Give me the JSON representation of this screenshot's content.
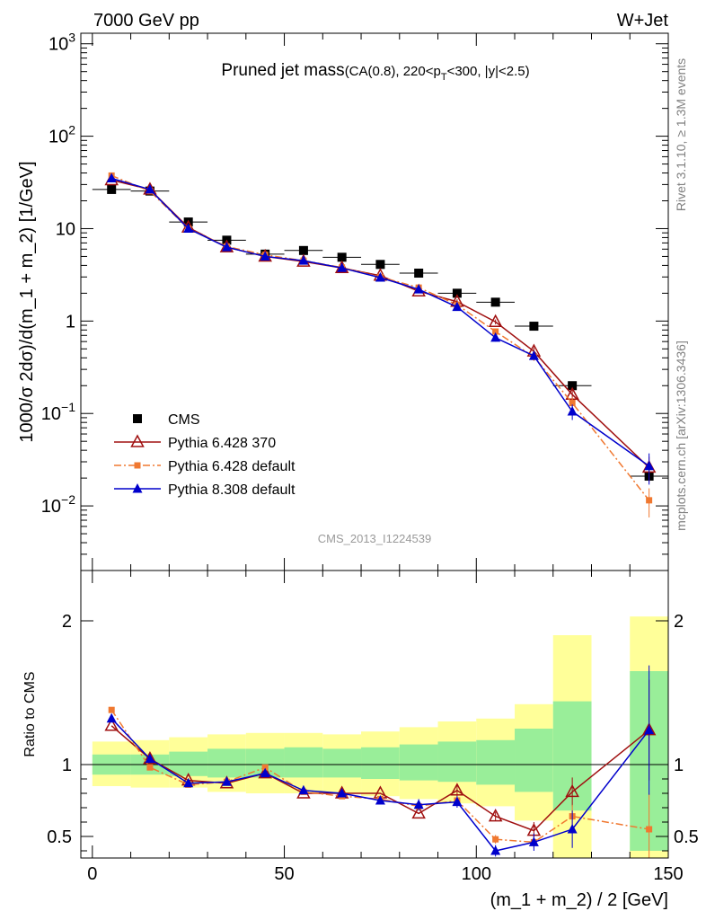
{
  "header": {
    "left": "7000 GeV pp",
    "right": "W+Jet"
  },
  "title": {
    "main": "Pruned jet mass",
    "cuts": "(CA(0.8), 220<p",
    "sub": "T",
    "cuts_end": "<300, |y|<2.5)"
  },
  "side_texts": {
    "rivet": "Rivet 3.1.10, ≥ 1.3M events",
    "mcplots": "mcplots.cern.ch [arXiv:1306.3436]"
  },
  "watermark": "CMS_2013_I1224539",
  "legend": [
    "CMS",
    "Pythia 6.428 370",
    "Pythia 6.428 default",
    "Pythia 8.308 default"
  ],
  "chart_data": [
    {
      "type": "scatter",
      "yscale": "log",
      "ylabel": "1000/σ 2dσ)/d(m_1 + m_2) [1/GeV]",
      "xlim": [
        -3,
        150
      ],
      "ylim": [
        0.002,
        1300
      ],
      "y_ticks": [
        {
          "value": 1000,
          "base": "10",
          "exp": "3"
        },
        {
          "value": 100,
          "base": "10",
          "exp": "2"
        },
        {
          "value": 10,
          "base": "10",
          "exp": ""
        },
        {
          "value": 1,
          "base": "1",
          "exp": ""
        },
        {
          "value": 0.1,
          "base": "10",
          "exp": "−1"
        },
        {
          "value": 0.01,
          "base": "10",
          "exp": "−2"
        }
      ],
      "x": [
        5,
        15,
        25,
        35,
        45,
        55,
        65,
        75,
        85,
        95,
        105,
        115,
        125,
        145
      ],
      "x_half_widths": [
        5,
        5,
        5,
        5,
        5,
        5,
        5,
        5,
        5,
        5,
        5,
        5,
        5,
        5
      ],
      "series": [
        {
          "name": "CMS",
          "color": "#000000",
          "marker": "square",
          "values": [
            26.5,
            25.5,
            11.8,
            7.5,
            5.3,
            5.8,
            4.9,
            4.1,
            3.3,
            2.0,
            1.6,
            0.88,
            0.2,
            0.021
          ]
        },
        {
          "name": "Pythia 6.428 370",
          "color": "#a01010",
          "marker": "triangle-open",
          "line": "solid",
          "values": [
            33.5,
            26.5,
            10.3,
            6.3,
            5.0,
            4.4,
            3.75,
            3.1,
            2.1,
            1.62,
            0.98,
            0.47,
            0.16,
            0.026
          ],
          "errors": [
            0,
            0,
            0,
            0,
            0,
            0,
            0,
            0,
            0,
            0.1,
            0.06,
            0.05,
            0.02,
            0.008
          ]
        },
        {
          "name": "Pythia 6.428 default",
          "color": "#f07830",
          "marker": "square-small",
          "line": "dashdot",
          "values": [
            37.5,
            25.5,
            10.0,
            6.4,
            5.2,
            4.5,
            3.8,
            3.0,
            2.3,
            1.5,
            0.77,
            0.41,
            0.13,
            0.0115
          ],
          "errors": [
            0,
            0,
            0,
            0,
            0,
            0,
            0,
            0,
            0,
            0.1,
            0.05,
            0.04,
            0.02,
            0.004
          ]
        },
        {
          "name": "Pythia 8.308 default",
          "color": "#0000cc",
          "marker": "triangle",
          "line": "solid",
          "values": [
            35.0,
            26.5,
            10.0,
            6.3,
            5.0,
            4.5,
            3.75,
            2.95,
            2.2,
            1.42,
            0.66,
            0.42,
            0.105,
            0.027
          ],
          "errors": [
            0,
            0,
            0,
            0,
            0,
            0,
            0,
            0,
            0,
            0.1,
            0.06,
            0.04,
            0.02,
            0.01
          ]
        }
      ]
    },
    {
      "type": "scatter",
      "ylabel": "Ratio to CMS",
      "xlabel": "(m_1 + m_2) / 2 [GeV]",
      "xlim": [
        -3,
        150
      ],
      "ylim": [
        0.35,
        2.35
      ],
      "y_ticks": [
        0.5,
        1,
        2
      ],
      "x_ticks": [
        0,
        50,
        100,
        150
      ],
      "reference": 1,
      "bands": [
        {
          "x0": 0,
          "x1": 10,
          "green": [
            0.93,
            1.07
          ],
          "yellow": [
            0.85,
            1.16
          ]
        },
        {
          "x0": 10,
          "x1": 20,
          "green": [
            0.93,
            1.07
          ],
          "yellow": [
            0.84,
            1.17
          ]
        },
        {
          "x0": 20,
          "x1": 30,
          "green": [
            0.92,
            1.09
          ],
          "yellow": [
            0.84,
            1.19
          ]
        },
        {
          "x0": 30,
          "x1": 40,
          "green": [
            0.91,
            1.11
          ],
          "yellow": [
            0.81,
            1.21
          ]
        },
        {
          "x0": 40,
          "x1": 50,
          "green": [
            0.91,
            1.11
          ],
          "yellow": [
            0.8,
            1.22
          ]
        },
        {
          "x0": 50,
          "x1": 60,
          "green": [
            0.91,
            1.12
          ],
          "yellow": [
            0.8,
            1.22
          ]
        },
        {
          "x0": 60,
          "x1": 70,
          "green": [
            0.91,
            1.11
          ],
          "yellow": [
            0.8,
            1.21
          ]
        },
        {
          "x0": 70,
          "x1": 80,
          "green": [
            0.9,
            1.12
          ],
          "yellow": [
            0.78,
            1.23
          ]
        },
        {
          "x0": 80,
          "x1": 90,
          "green": [
            0.89,
            1.14
          ],
          "yellow": [
            0.76,
            1.26
          ]
        },
        {
          "x0": 90,
          "x1": 100,
          "green": [
            0.88,
            1.16
          ],
          "yellow": [
            0.73,
            1.3
          ]
        },
        {
          "x0": 100,
          "x1": 110,
          "green": [
            0.86,
            1.17
          ],
          "yellow": [
            0.71,
            1.32
          ]
        },
        {
          "x0": 110,
          "x1": 120,
          "green": [
            0.81,
            1.25
          ],
          "yellow": [
            0.61,
            1.42
          ]
        },
        {
          "x0": 120,
          "x1": 130,
          "green": [
            0.68,
            1.44
          ],
          "yellow": [
            0.35,
            1.9
          ]
        },
        {
          "x0": 140,
          "x1": 150,
          "green": [
            0.4,
            1.65
          ],
          "yellow": [
            0.35,
            2.03
          ]
        }
      ],
      "series": [
        {
          "name": "Pythia 6.428 370",
          "values": [
            1.27,
            1.04,
            0.89,
            0.87,
            0.94,
            0.8,
            0.8,
            0.8,
            0.66,
            0.82,
            0.64,
            0.54,
            0.81,
            1.24
          ],
          "errors": [
            0,
            0,
            0,
            0,
            0,
            0,
            0,
            0,
            0,
            0.04,
            0.03,
            0.06,
            0.1,
            0.35
          ]
        },
        {
          "name": "Pythia 6.428 default",
          "values": [
            1.38,
            0.98,
            0.86,
            0.88,
            0.98,
            0.81,
            0.78,
            0.76,
            0.71,
            0.75,
            0.48,
            0.46,
            0.64,
            0.55
          ],
          "errors": [
            0,
            0,
            0,
            0,
            0,
            0,
            0,
            0,
            0,
            0.03,
            0.03,
            0.04,
            0.08,
            0.25
          ]
        },
        {
          "name": "Pythia 8.308 default",
          "values": [
            1.32,
            1.04,
            0.87,
            0.88,
            0.94,
            0.82,
            0.8,
            0.75,
            0.72,
            0.74,
            0.4,
            0.46,
            0.55,
            1.24
          ],
          "errors": [
            0,
            0,
            0,
            0,
            0,
            0,
            0,
            0,
            0.04,
            0.04,
            0.04,
            0.06,
            0.13,
            0.45
          ]
        }
      ]
    }
  ]
}
